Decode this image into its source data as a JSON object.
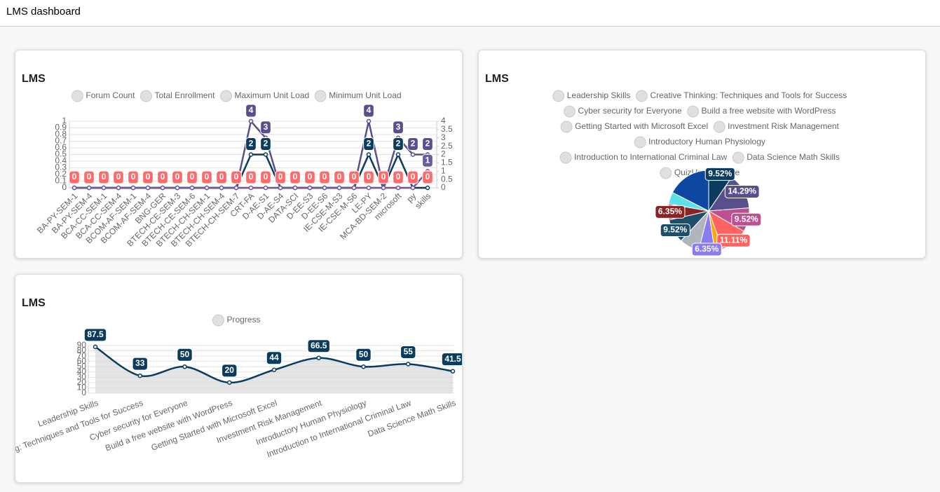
{
  "header": {
    "title": "LMS dashboard"
  },
  "chart_data": [
    {
      "type": "line",
      "title": "LMS",
      "categories": [
        "BA-PY-SEM-1",
        "BA-PY-SEM-4",
        "BCA-CC-SEM-1",
        "BCA-CC-SEM-4",
        "BCOM-AF-SEM-1",
        "BCOM-AF-SEM-4",
        "BNG-GER",
        "BTECH-CE-SEM-3",
        "BTECH-CE-SEM-6",
        "BTECH-CH-SEM-1",
        "BTECH-CH-SEM-4",
        "BTECH-CH-SEM-7",
        "CRT-FA",
        "D-AE-S1",
        "D-AE-S4",
        "DATA-SCI",
        "D-EE-S3",
        "D-EE-S6",
        "IE-CSE-M-S3",
        "IE-CSE-M-S6",
        "LE-PY",
        "MCA-BD-SEM-2",
        "microsoft",
        "py",
        "skills"
      ],
      "series": [
        {
          "name": "Forum Count",
          "color": "#ff6b6b",
          "values": [
            0,
            0,
            0,
            0,
            0,
            0,
            0,
            0,
            0,
            0,
            0,
            0,
            0,
            0,
            0,
            0,
            0,
            0,
            0,
            0,
            0,
            0,
            0,
            0,
            0
          ]
        },
        {
          "name": "Total Enrollment",
          "color": "#0b3c5d",
          "axis": "y2",
          "values": [
            0,
            0,
            0,
            0,
            0,
            0,
            0,
            0,
            0,
            0,
            0,
            0,
            2,
            2,
            0,
            0,
            0,
            0,
            0,
            0,
            2,
            0,
            2,
            0,
            0
          ]
        },
        {
          "name": "Maximum Unit Load",
          "color": "#58508d",
          "axis": "y2",
          "values": [
            0,
            0,
            0,
            0,
            0,
            0,
            0,
            0,
            0,
            0,
            0,
            0,
            4,
            3,
            0,
            0,
            0,
            0,
            0,
            0,
            4,
            0,
            3,
            2,
            2
          ]
        },
        {
          "name": "Minimum Unit Load",
          "color": "#6a5a9e",
          "axis": "y2",
          "values": [
            0,
            0,
            0,
            0,
            0,
            0,
            0,
            0,
            0,
            0,
            0,
            0,
            0,
            0,
            0,
            0,
            0,
            0,
            0,
            0,
            0,
            0,
            0,
            0,
            1
          ]
        }
      ],
      "ylim": [
        0,
        1
      ],
      "yticks": [
        0,
        0.1,
        0.2,
        0.3,
        0.4,
        0.5,
        0.6,
        0.7,
        0.8,
        0.9,
        1
      ],
      "y2lim": [
        0,
        4
      ],
      "y2ticks": [
        0,
        0.5,
        1,
        1.5,
        2,
        2.5,
        3,
        3.5,
        4
      ],
      "grid": true
    },
    {
      "type": "pie",
      "title": "LMS",
      "categories": [
        "Leadership Skills",
        "Creative Thinking: Techniques and Tools for Success",
        "Cyber security for Everyone",
        "Build a free website with WordPress",
        "Getting Started with Microsoft Excel",
        "Investment Risk Management",
        "Introductory Human Physiology",
        "Introduction to International Criminal Law",
        "Data Science Math Skills",
        "QuizUp",
        "false"
      ],
      "values": [
        9.52,
        14.29,
        9.52,
        11.11,
        3.17,
        6.35,
        7.94,
        9.52,
        6.35,
        4.76,
        17.46
      ],
      "value_labels": [
        "9.52%",
        "14.29%",
        "9.52%",
        "11.11%",
        null,
        "6.35%",
        null,
        "9.52%",
        "6.35%",
        null,
        null
      ],
      "colors": [
        "#0b3c5d",
        "#58508d",
        "#bc5090",
        "#ff6361",
        "#ffa600",
        "#8a7bf0",
        "#b0b4bc",
        "#1f4e6b",
        "#8b2323",
        "#5ce1e6",
        "#0d47a1"
      ]
    },
    {
      "type": "area",
      "title": "LMS",
      "categories": [
        "Leadership Skills",
        "Creative Thinking: Techniques and Tools for Success",
        "Cyber security for Everyone",
        "Build a free website with WordPress",
        "Getting Started with Microsoft Excel",
        "Investment Risk Management",
        "Introductory Human Physiology",
        "Introduction to International Criminal Law",
        "Data Science Math Skills"
      ],
      "series": [
        {
          "name": "Progress",
          "color": "#0b3c5d",
          "values": [
            87.5,
            33,
            50,
            20,
            44,
            66.5,
            50,
            55,
            41.5
          ]
        }
      ],
      "ylim": [
        0,
        90
      ],
      "yticks": [
        0,
        10,
        20,
        30,
        40,
        50,
        60,
        70,
        80,
        90
      ],
      "grid": true
    }
  ]
}
